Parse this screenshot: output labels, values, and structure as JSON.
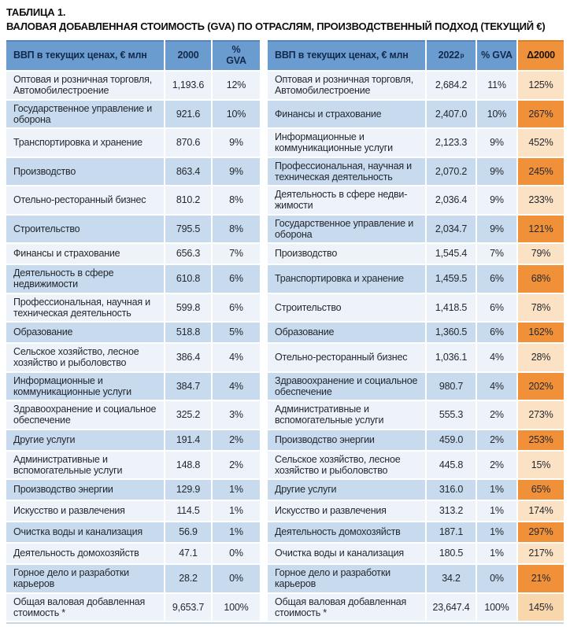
{
  "title": {
    "line1": "ТАБЛИЦА 1.",
    "line2": "ВАЛОВАЯ ДОБАВЛЕННАЯ СТОИМОСТЬ (GVA) ПО ОТРАСЛЯМ, ПРОИЗВОДСТВЕННЫЙ ПОДХОД (ТЕКУЩИЙ €)"
  },
  "colors": {
    "header_blue": "#6B9CD0",
    "header_orange": "#F0923B",
    "row_light": "#EEF3FA",
    "row_blue": "#C7DAEE",
    "delta_light": "#FBE2C5",
    "delta_dark": "#F0913A",
    "delta_total": "#F8D7AC"
  },
  "left_table": {
    "headers": {
      "name": "ВВП в текущих ценах, € млн",
      "year": "2000",
      "gva": "%\nGVA"
    },
    "rows": [
      {
        "name": "Оптовая и розничная торговля, Автомобилестроение",
        "value": "1,193.6",
        "gva": "12%"
      },
      {
        "name": "Государственное управление и оборона",
        "value": "921.6",
        "gva": "10%"
      },
      {
        "name": "Транспортировка и хранение",
        "value": "870.6",
        "gva": "9%"
      },
      {
        "name": "Производство",
        "value": "863.4",
        "gva": "9%"
      },
      {
        "name": "Отельно-ресторанный бизнес",
        "value": "810.2",
        "gva": "8%"
      },
      {
        "name": "Строительство",
        "value": "795.5",
        "gva": "8%"
      },
      {
        "name": "Финансы и страхование",
        "value": "656.3",
        "gva": "7%"
      },
      {
        "name": "Деятельность в сфере недвижимости",
        "value": "610.8",
        "gva": "6%"
      },
      {
        "name": "Профессиональная, научная и техническая деятельность",
        "value": "599.8",
        "gva": "6%"
      },
      {
        "name": "Образование",
        "value": "518.8",
        "gva": "5%"
      },
      {
        "name": "Сельское хозяйство, лесное хозяйство и рыболовство",
        "value": "386.4",
        "gva": "4%"
      },
      {
        "name": "Информационные и коммуникационные услуги",
        "value": "384.7",
        "gva": "4%"
      },
      {
        "name": "Здравоохранение и социальное обеспечение",
        "value": "325.2",
        "gva": "3%"
      },
      {
        "name": "Другие услуги",
        "value": "191.4",
        "gva": "2%"
      },
      {
        "name": "Административные и вспомогательные услуги",
        "value": "148.8",
        "gva": "2%"
      },
      {
        "name": "Производство энергии",
        "value": "129.9",
        "gva": "1%"
      },
      {
        "name": "Искусство и развлечения",
        "value": "114.5",
        "gva": "1%"
      },
      {
        "name": "Очистка воды и канализация",
        "value": "56.9",
        "gva": "1%"
      },
      {
        "name": "Деятельность домохозяйств",
        "value": "47.1",
        "gva": "0%"
      },
      {
        "name": "Горное дело и разработки карьеров",
        "value": "28.2",
        "gva": "0%"
      }
    ],
    "total": {
      "name": "Общая валовая добавленная стоимость *",
      "value": "9,653.7",
      "gva": "100%"
    }
  },
  "right_table": {
    "headers": {
      "name": "ВВП в текущих ценах, € млн",
      "year": "2022",
      "year_sup": "р",
      "gva": "% GVA",
      "delta": "Δ2000"
    },
    "rows": [
      {
        "name": "Оптовая и розничная торговля, Автомобилестроение",
        "value": "2,684.2",
        "gva": "11%",
        "delta": "125%"
      },
      {
        "name": "Финансы и страхование",
        "value": "2,407.0",
        "gva": "10%",
        "delta": "267%"
      },
      {
        "name": "Информационные и коммуникационные услуги",
        "value": "2,123.3",
        "gva": "9%",
        "delta": "452%"
      },
      {
        "name": "Профессиональная, научная и техническая деятельность",
        "value": "2,070.2",
        "gva": "9%",
        "delta": "245%"
      },
      {
        "name": "Деятельность в сфере недви-жимости",
        "value": "2,036.4",
        "gva": "9%",
        "delta": "233%"
      },
      {
        "name": "Государственное управление и оборона",
        "value": "2,034.7",
        "gva": "9%",
        "delta": "121%"
      },
      {
        "name": "Производство",
        "value": "1,545.4",
        "gva": "7%",
        "delta": "79%"
      },
      {
        "name": "Транспортировка и хранение",
        "value": "1,459.5",
        "gva": "6%",
        "delta": "68%"
      },
      {
        "name": "Строительство",
        "value": "1,418.5",
        "gva": "6%",
        "delta": "78%"
      },
      {
        "name": "Образование",
        "value": "1,360.5",
        "gva": "6%",
        "delta": "162%"
      },
      {
        "name": "Отельно-ресторанный бизнес",
        "value": "1,036.1",
        "gva": "4%",
        "delta": "28%"
      },
      {
        "name": "Здравоохранение и социальное обеспечение",
        "value": "980.7",
        "gva": "4%",
        "delta": "202%"
      },
      {
        "name": "Административные и вспомогательные услуги",
        "value": "555.3",
        "gva": "2%",
        "delta": "273%"
      },
      {
        "name": "Производство энергии",
        "value": "459.0",
        "gva": "2%",
        "delta": "253%"
      },
      {
        "name": "Сельское хозяйство, лесное хозяйство и рыболовство",
        "value": "445.8",
        "gva": "2%",
        "delta": "15%"
      },
      {
        "name": "Другие услуги",
        "value": "316.0",
        "gva": "1%",
        "delta": "65%"
      },
      {
        "name": "Искусство и развлечения",
        "value": "313.2",
        "gva": "1%",
        "delta": "174%"
      },
      {
        "name": "Деятельность домохозяйств",
        "value": "187.1",
        "gva": "1%",
        "delta": "297%"
      },
      {
        "name": "Очистка воды и канализация",
        "value": "180.5",
        "gva": "1%",
        "delta": "217%"
      },
      {
        "name": "Горное дело и разработки карьеров",
        "value": "34.2",
        "gva": "0%",
        "delta": "21%"
      }
    ],
    "total": {
      "name": "Общая валовая добавленная стоимость *",
      "value": "23,647.4",
      "gva": "100%",
      "delta": "145%"
    }
  }
}
